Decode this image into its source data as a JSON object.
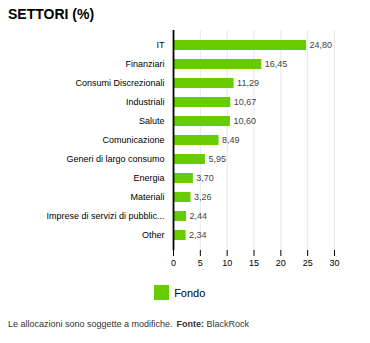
{
  "chart_data": {
    "type": "bar",
    "orientation": "horizontal",
    "title": "SETTORI (%)",
    "categories": [
      "IT",
      "Finanziari",
      "Consumi Discrezionali",
      "Industriali",
      "Salute",
      "Comunicazione",
      "Generi di largo consumo",
      "Energia",
      "Materiali",
      "Imprese di servizi di pubblic...",
      "Other"
    ],
    "series": [
      {
        "name": "Fondo",
        "color": "#66cc00",
        "values": [
          24.8,
          16.45,
          11.29,
          10.67,
          10.6,
          8.49,
          5.95,
          3.7,
          3.26,
          2.44,
          2.34
        ],
        "value_labels": [
          "24,80",
          "16,45",
          "11,29",
          "10,67",
          "10,60",
          "8,49",
          "5,95",
          "3,70",
          "3,26",
          "2,44",
          "2,34"
        ]
      }
    ],
    "data_labels": true,
    "xlim": [
      0,
      30
    ],
    "xticks": [
      0,
      5,
      10,
      15,
      20,
      25,
      30
    ],
    "grid": true,
    "legend": "bottom",
    "annotations": [
      "Le allocazioni sono soggette a modifiche.",
      "Fonte:",
      " BlackRock"
    ]
  }
}
